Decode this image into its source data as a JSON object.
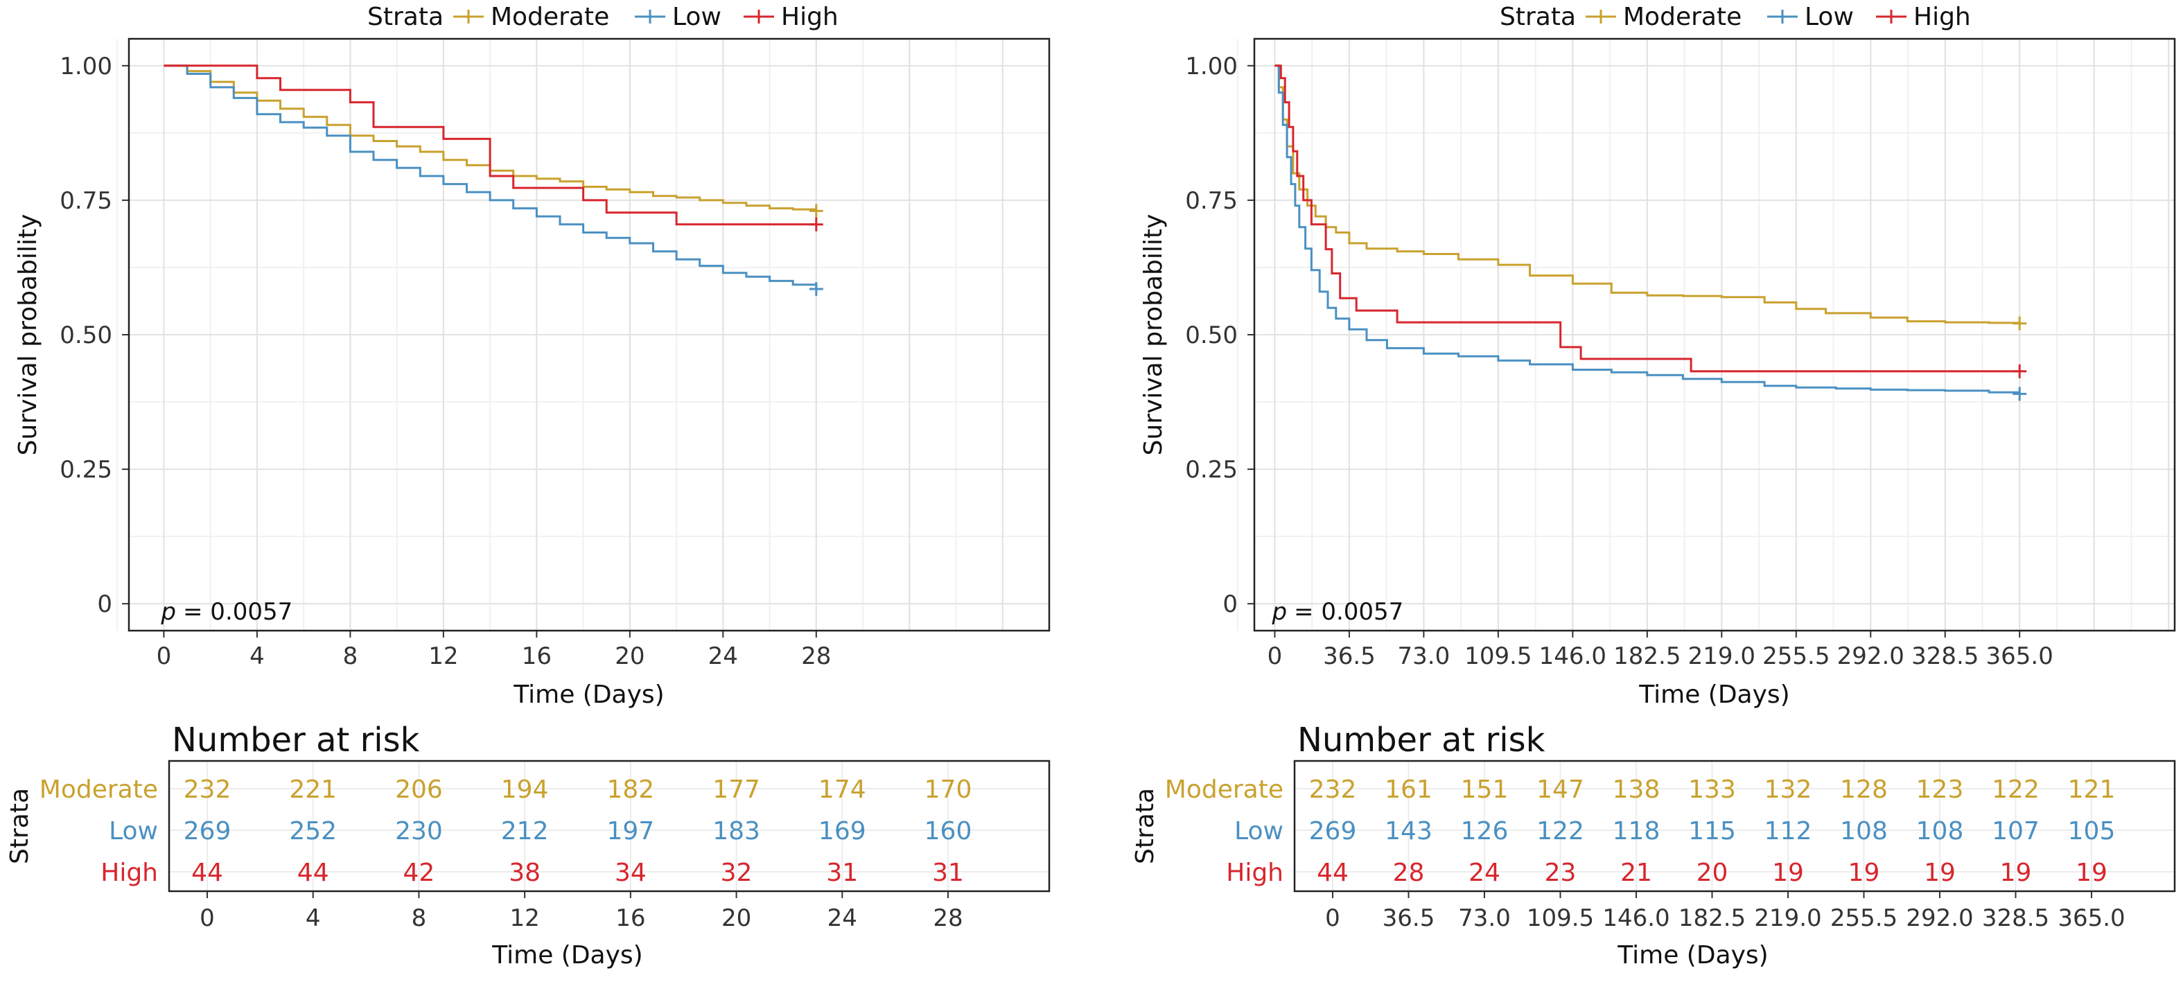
{
  "legend": {
    "title": "Strata",
    "entries": [
      "Moderate",
      "Low",
      "High"
    ]
  },
  "colors": {
    "Moderate": "#C9A12E",
    "Low": "#4A90C2",
    "High": "#D7262D"
  },
  "chart_data": [
    {
      "type": "line",
      "subtype": "kaplan-meier step",
      "xlabel": "Time (Days)",
      "ylabel": "Survival probability",
      "xlim": [
        -1.5,
        38
      ],
      "ylim": [
        -0.05,
        1.05
      ],
      "x_ticks": [
        "0",
        "4",
        "8",
        "12",
        "16",
        "20",
        "24",
        "28"
      ],
      "x_tick_values": [
        0,
        4,
        8,
        12,
        16,
        20,
        24,
        28
      ],
      "y_ticks": [
        "0",
        "0.25",
        "0.50",
        "0.75",
        "1.00"
      ],
      "y_tick_values": [
        0,
        0.25,
        0.5,
        0.75,
        1.0
      ],
      "grid": true,
      "legend_position": "top",
      "annotation": {
        "p_label": "p",
        "p_value": "= 0.0057"
      },
      "series": [
        {
          "name": "Moderate",
          "censor_end": true,
          "points": [
            [
              0,
              1.0
            ],
            [
              1,
              0.99
            ],
            [
              2,
              0.97
            ],
            [
              3,
              0.95
            ],
            [
              4,
              0.935
            ],
            [
              5,
              0.92
            ],
            [
              6,
              0.905
            ],
            [
              7,
              0.89
            ],
            [
              8,
              0.87
            ],
            [
              9,
              0.86
            ],
            [
              10,
              0.85
            ],
            [
              11,
              0.84
            ],
            [
              12,
              0.825
            ],
            [
              13,
              0.815
            ],
            [
              14,
              0.805
            ],
            [
              15,
              0.795
            ],
            [
              16,
              0.79
            ],
            [
              17,
              0.785
            ],
            [
              18,
              0.775
            ],
            [
              19,
              0.77
            ],
            [
              20,
              0.765
            ],
            [
              21,
              0.758
            ],
            [
              22,
              0.755
            ],
            [
              23,
              0.75
            ],
            [
              24,
              0.745
            ],
            [
              25,
              0.74
            ],
            [
              26,
              0.735
            ],
            [
              27,
              0.733
            ],
            [
              28,
              0.73
            ]
          ]
        },
        {
          "name": "Low",
          "censor_end": true,
          "points": [
            [
              0,
              1.0
            ],
            [
              1,
              0.985
            ],
            [
              2,
              0.96
            ],
            [
              3,
              0.94
            ],
            [
              4,
              0.91
            ],
            [
              5,
              0.895
            ],
            [
              6,
              0.885
            ],
            [
              7,
              0.87
            ],
            [
              8,
              0.84
            ],
            [
              9,
              0.825
            ],
            [
              10,
              0.81
            ],
            [
              11,
              0.795
            ],
            [
              12,
              0.78
            ],
            [
              13,
              0.765
            ],
            [
              14,
              0.75
            ],
            [
              15,
              0.735
            ],
            [
              16,
              0.72
            ],
            [
              17,
              0.705
            ],
            [
              18,
              0.69
            ],
            [
              19,
              0.68
            ],
            [
              20,
              0.67
            ],
            [
              21,
              0.655
            ],
            [
              22,
              0.64
            ],
            [
              23,
              0.628
            ],
            [
              24,
              0.615
            ],
            [
              25,
              0.608
            ],
            [
              26,
              0.6
            ],
            [
              27,
              0.593
            ],
            [
              28,
              0.585
            ]
          ]
        },
        {
          "name": "High",
          "censor_end": true,
          "points": [
            [
              0,
              1.0
            ],
            [
              4,
              1.0
            ],
            [
              4,
              0.977
            ],
            [
              5,
              0.977
            ],
            [
              5,
              0.955
            ],
            [
              8,
              0.955
            ],
            [
              8,
              0.932
            ],
            [
              9,
              0.932
            ],
            [
              9,
              0.886
            ],
            [
              12,
              0.886
            ],
            [
              12,
              0.864
            ],
            [
              14,
              0.864
            ],
            [
              14,
              0.841
            ],
            [
              14,
              0.841
            ],
            [
              14,
              0.795
            ],
            [
              15,
              0.795
            ],
            [
              15,
              0.773
            ],
            [
              18,
              0.773
            ],
            [
              18,
              0.75
            ],
            [
              19,
              0.75
            ],
            [
              19,
              0.727
            ],
            [
              22,
              0.727
            ],
            [
              22,
              0.705
            ],
            [
              28,
              0.705
            ]
          ]
        }
      ],
      "risk_table": {
        "title": "Number at risk",
        "ylabel": "Strata",
        "xlabel": "Time (Days)",
        "times": [
          "0",
          "4",
          "8",
          "12",
          "16",
          "20",
          "24",
          "28"
        ],
        "time_values": [
          0,
          4,
          8,
          12,
          16,
          20,
          24,
          28
        ],
        "rows": [
          {
            "name": "Moderate",
            "values": [
              "232",
              "221",
              "206",
              "194",
              "182",
              "177",
              "174",
              "170"
            ]
          },
          {
            "name": "Low",
            "values": [
              "269",
              "252",
              "230",
              "212",
              "197",
              "183",
              "169",
              "160"
            ]
          },
          {
            "name": "High",
            "values": [
              "44",
              "44",
              "42",
              "38",
              "34",
              "32",
              "31",
              "31"
            ]
          }
        ]
      }
    },
    {
      "type": "line",
      "subtype": "kaplan-meier step",
      "xlabel": "Time (Days)",
      "ylabel": "Survival probability",
      "xlim": [
        -10,
        441
      ],
      "ylim": [
        -0.05,
        1.05
      ],
      "x_ticks": [
        "0",
        "36.5",
        "73.0",
        "109.5",
        "146.0",
        "182.5",
        "219.0",
        "255.5",
        "292.0",
        "328.5",
        "365.0"
      ],
      "x_tick_values": [
        0,
        36.5,
        73,
        109.5,
        146,
        182.5,
        219,
        255.5,
        292,
        328.5,
        365
      ],
      "y_ticks": [
        "0",
        "0.25",
        "0.50",
        "0.75",
        "1.00"
      ],
      "y_tick_values": [
        0,
        0.25,
        0.5,
        0.75,
        1.0
      ],
      "grid": true,
      "legend_position": "top",
      "annotation": {
        "p_label": "p",
        "p_value": "= 0.0057"
      },
      "series": [
        {
          "name": "Moderate",
          "censor_end": true,
          "points": [
            [
              0,
              1.0
            ],
            [
              2,
              0.96
            ],
            [
              4,
              0.9
            ],
            [
              6,
              0.85
            ],
            [
              9,
              0.8
            ],
            [
              12,
              0.77
            ],
            [
              16,
              0.74
            ],
            [
              20,
              0.72
            ],
            [
              25,
              0.7
            ],
            [
              30,
              0.69
            ],
            [
              36.5,
              0.67
            ],
            [
              45,
              0.66
            ],
            [
              60,
              0.655
            ],
            [
              73,
              0.65
            ],
            [
              90,
              0.64
            ],
            [
              109.5,
              0.63
            ],
            [
              125,
              0.61
            ],
            [
              146,
              0.595
            ],
            [
              165,
              0.578
            ],
            [
              182.5,
              0.573
            ],
            [
              200,
              0.572
            ],
            [
              219,
              0.57
            ],
            [
              240,
              0.56
            ],
            [
              255.5,
              0.548
            ],
            [
              270,
              0.54
            ],
            [
              292,
              0.532
            ],
            [
              310,
              0.525
            ],
            [
              328.5,
              0.523
            ],
            [
              350,
              0.522
            ],
            [
              365,
              0.521
            ]
          ]
        },
        {
          "name": "Low",
          "censor_end": true,
          "points": [
            [
              0,
              1.0
            ],
            [
              2,
              0.95
            ],
            [
              4,
              0.89
            ],
            [
              6,
              0.83
            ],
            [
              8,
              0.78
            ],
            [
              10,
              0.74
            ],
            [
              12,
              0.7
            ],
            [
              15,
              0.66
            ],
            [
              18,
              0.62
            ],
            [
              22,
              0.58
            ],
            [
              26,
              0.55
            ],
            [
              30,
              0.53
            ],
            [
              36.5,
              0.51
            ],
            [
              45,
              0.49
            ],
            [
              55,
              0.475
            ],
            [
              73,
              0.465
            ],
            [
              90,
              0.46
            ],
            [
              109.5,
              0.452
            ],
            [
              125,
              0.445
            ],
            [
              146,
              0.435
            ],
            [
              165,
              0.43
            ],
            [
              182.5,
              0.425
            ],
            [
              200,
              0.418
            ],
            [
              219,
              0.412
            ],
            [
              240,
              0.405
            ],
            [
              255.5,
              0.402
            ],
            [
              275,
              0.4
            ],
            [
              292,
              0.398
            ],
            [
              310,
              0.397
            ],
            [
              328.5,
              0.396
            ],
            [
              350,
              0.393
            ],
            [
              365,
              0.39
            ]
          ]
        },
        {
          "name": "High",
          "censor_end": true,
          "points": [
            [
              0,
              1.0
            ],
            [
              3,
              1.0
            ],
            [
              3,
              0.977
            ],
            [
              5,
              0.977
            ],
            [
              5,
              0.932
            ],
            [
              7,
              0.932
            ],
            [
              7,
              0.886
            ],
            [
              9,
              0.886
            ],
            [
              9,
              0.841
            ],
            [
              11,
              0.841
            ],
            [
              11,
              0.795
            ],
            [
              14,
              0.795
            ],
            [
              14,
              0.75
            ],
            [
              18,
              0.75
            ],
            [
              18,
              0.705
            ],
            [
              25,
              0.705
            ],
            [
              25,
              0.659
            ],
            [
              28,
              0.659
            ],
            [
              28,
              0.614
            ],
            [
              32,
              0.614
            ],
            [
              32,
              0.568
            ],
            [
              40,
              0.568
            ],
            [
              40,
              0.545
            ],
            [
              60,
              0.545
            ],
            [
              60,
              0.523
            ],
            [
              85,
              0.523
            ],
            [
              85,
              0.523
            ],
            [
              140,
              0.523
            ],
            [
              140,
              0.477
            ],
            [
              150,
              0.477
            ],
            [
              150,
              0.455
            ],
            [
              204,
              0.455
            ],
            [
              204,
              0.432
            ],
            [
              365,
              0.432
            ]
          ]
        }
      ],
      "risk_table": {
        "title": "Number at risk",
        "ylabel": "Strata",
        "xlabel": "Time (Days)",
        "times": [
          "0",
          "36.5",
          "73.0",
          "109.5",
          "146.0",
          "182.5",
          "219.0",
          "255.5",
          "292.0",
          "328.5",
          "365.0"
        ],
        "time_values": [
          0,
          36.5,
          73,
          109.5,
          146,
          182.5,
          219,
          255.5,
          292,
          328.5,
          365
        ],
        "rows": [
          {
            "name": "Moderate",
            "values": [
              "232",
              "161",
              "151",
              "147",
              "138",
              "133",
              "132",
              "128",
              "123",
              "122",
              "121"
            ]
          },
          {
            "name": "Low",
            "values": [
              "269",
              "143",
              "126",
              "122",
              "118",
              "115",
              "112",
              "108",
              "108",
              "107",
              "105"
            ]
          },
          {
            "name": "High",
            "values": [
              "44",
              "28",
              "24",
              "23",
              "21",
              "20",
              "19",
              "19",
              "19",
              "19",
              "19"
            ]
          }
        ]
      }
    }
  ]
}
